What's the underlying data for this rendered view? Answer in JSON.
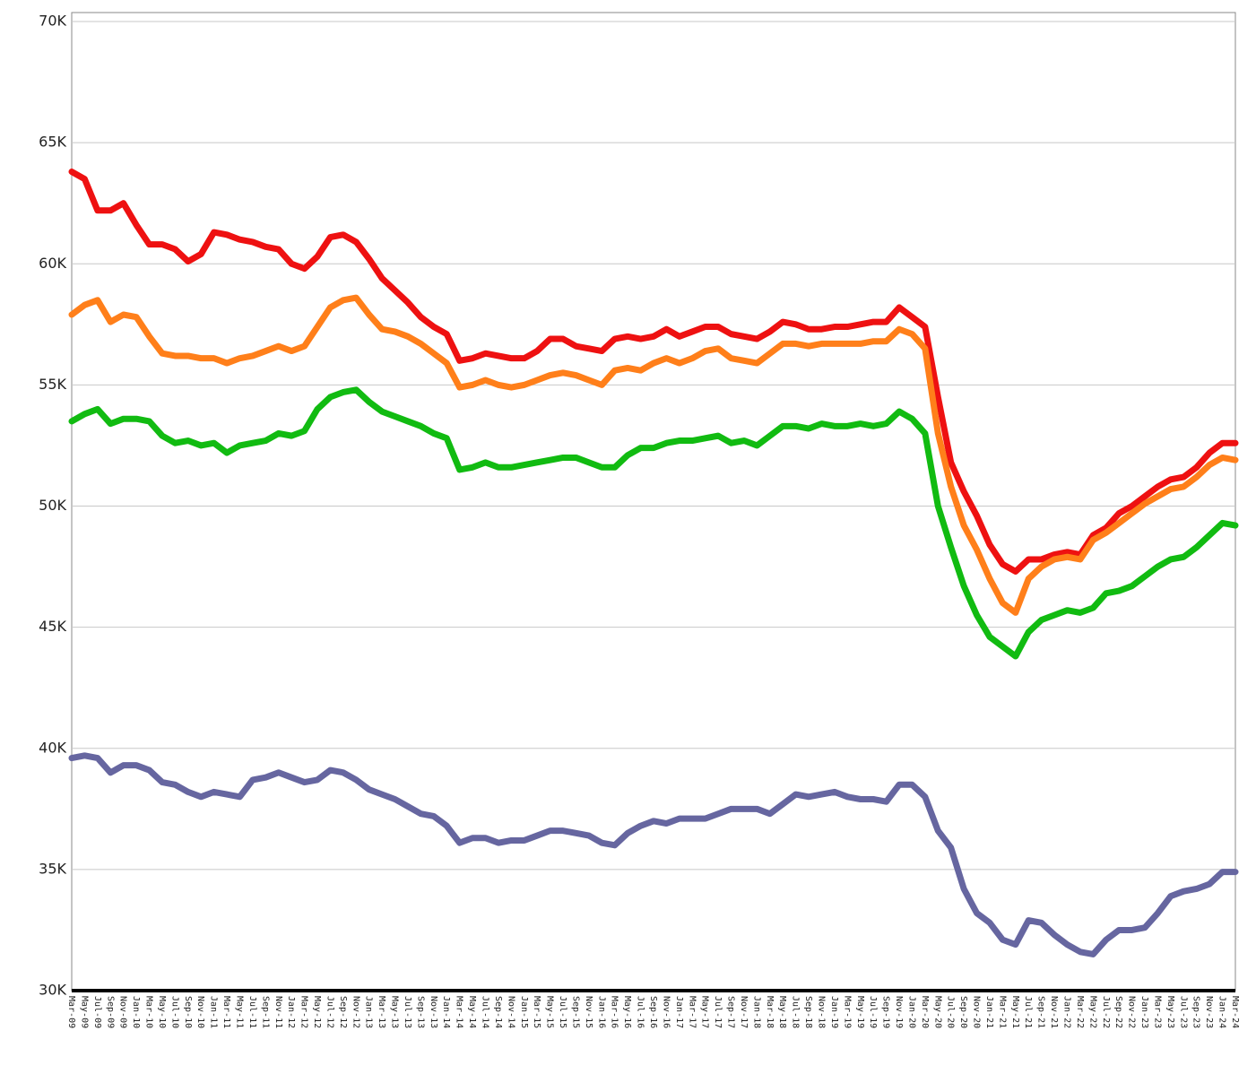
{
  "chart_data": {
    "type": "line",
    "categories": [
      "Mar-09",
      "May-09",
      "Jul-09",
      "Sep-09",
      "Nov-09",
      "Jan-10",
      "Mar-10",
      "May-10",
      "Jul-10",
      "Sep-10",
      "Nov-10",
      "Jan-11",
      "Mar-11",
      "May-11",
      "Jul-11",
      "Sep-11",
      "Nov-11",
      "Jan-12",
      "Mar-12",
      "May-12",
      "Jul-12",
      "Sep-12",
      "Nov-12",
      "Jan-13",
      "Mar-13",
      "May-13",
      "Jul-13",
      "Sep-13",
      "Nov-13",
      "Jan-14",
      "Mar-14",
      "May-14",
      "Jul-14",
      "Sep-14",
      "Nov-14",
      "Jan-15",
      "Mar-15",
      "May-15",
      "Jul-15",
      "Sep-15",
      "Nov-15",
      "Jan-16",
      "Mar-16",
      "May-16",
      "Jul-16",
      "Sep-16",
      "Nov-16",
      "Jan-17",
      "Mar-17",
      "May-17",
      "Jul-17",
      "Sep-17",
      "Nov-17",
      "Jan-18",
      "Mar-18",
      "May-18",
      "Jul-18",
      "Sep-18",
      "Nov-18",
      "Jan-19",
      "Mar-19",
      "May-19",
      "Jul-19",
      "Sep-19",
      "Nov-19",
      "Jan-20",
      "Mar-20",
      "May-20",
      "Jul-20",
      "Sep-20",
      "Nov-20",
      "Jan-21",
      "Mar-21",
      "May-21",
      "Jul-21",
      "Sep-21",
      "Nov-21",
      "Jan-22",
      "Mar-22",
      "May-22",
      "Jul-22",
      "Sep-22",
      "Nov-22",
      "Jan-23",
      "Mar-23",
      "May-23",
      "Jul-23",
      "Sep-23",
      "Nov-23",
      "Jan-24",
      "Mar-24"
    ],
    "series": [
      {
        "color": "#ee1111",
        "values": [
          63800,
          63500,
          62200,
          62200,
          62500,
          61600,
          60800,
          60800,
          60600,
          60100,
          60400,
          61300,
          61200,
          61000,
          60900,
          60700,
          60600,
          60000,
          59800,
          60300,
          61100,
          61200,
          60900,
          60200,
          59400,
          58900,
          58400,
          57800,
          57400,
          57100,
          56000,
          56100,
          56300,
          56200,
          56100,
          56100,
          56400,
          56900,
          56900,
          56600,
          56500,
          56400,
          56900,
          57000,
          56900,
          57000,
          57300,
          57000,
          57200,
          57400,
          57400,
          57100,
          57000,
          56900,
          57200,
          57600,
          57500,
          57300,
          57300,
          57400,
          57400,
          57500,
          57600,
          57600,
          58200,
          57800,
          57400,
          54500,
          51800,
          50600,
          49600,
          48400,
          47600,
          47300,
          47800,
          47800,
          48000,
          48100,
          48000,
          48800,
          49100,
          49700,
          50000,
          50400,
          50800,
          51100,
          51200,
          51600,
          52200,
          52600,
          52600
        ]
      },
      {
        "color": "#ff7f1a",
        "values": [
          57900,
          58300,
          58500,
          57600,
          57900,
          57800,
          57000,
          56300,
          56200,
          56200,
          56100,
          56100,
          55900,
          56100,
          56200,
          56400,
          56600,
          56400,
          56600,
          57400,
          58200,
          58500,
          58600,
          57900,
          57300,
          57200,
          57000,
          56700,
          56300,
          55900,
          54900,
          55000,
          55200,
          55000,
          54900,
          55000,
          55200,
          55400,
          55500,
          55400,
          55200,
          55000,
          55600,
          55700,
          55600,
          55900,
          56100,
          55900,
          56100,
          56400,
          56500,
          56100,
          56000,
          55900,
          56300,
          56700,
          56700,
          56600,
          56700,
          56700,
          56700,
          56700,
          56800,
          56800,
          57300,
          57100,
          56500,
          53000,
          50800,
          49200,
          48200,
          47000,
          46000,
          45600,
          47000,
          47500,
          47800,
          47900,
          47800,
          48600,
          48900,
          49300,
          49700,
          50100,
          50400,
          50700,
          50800,
          51200,
          51700,
          52000,
          51900
        ]
      },
      {
        "color": "#11bb11",
        "values": [
          53500,
          53800,
          54000,
          53400,
          53600,
          53600,
          53500,
          52900,
          52600,
          52700,
          52500,
          52600,
          52200,
          52500,
          52600,
          52700,
          53000,
          52900,
          53100,
          54000,
          54500,
          54700,
          54800,
          54300,
          53900,
          53700,
          53500,
          53300,
          53000,
          52800,
          51500,
          51600,
          51800,
          51600,
          51600,
          51700,
          51800,
          51900,
          52000,
          52000,
          51800,
          51600,
          51600,
          52100,
          52400,
          52400,
          52600,
          52700,
          52700,
          52800,
          52900,
          52600,
          52700,
          52500,
          52900,
          53300,
          53300,
          53200,
          53400,
          53300,
          53300,
          53400,
          53300,
          53400,
          53900,
          53600,
          53000,
          50000,
          48300,
          46700,
          45500,
          44600,
          44200,
          43800,
          44800,
          45300,
          45500,
          45700,
          45600,
          45800,
          46400,
          46500,
          46700,
          47100,
          47500,
          47800,
          47900,
          48300,
          48800,
          49300,
          49200
        ]
      },
      {
        "color": "#6666a0",
        "values": [
          39600,
          39700,
          39600,
          39000,
          39300,
          39300,
          39100,
          38600,
          38500,
          38200,
          38000,
          38200,
          38100,
          38000,
          38700,
          38800,
          39000,
          38800,
          38600,
          38700,
          39100,
          39000,
          38700,
          38300,
          38100,
          37900,
          37600,
          37300,
          37200,
          36800,
          36100,
          36300,
          36300,
          36100,
          36200,
          36200,
          36400,
          36600,
          36600,
          36500,
          36400,
          36100,
          36000,
          36500,
          36800,
          37000,
          36900,
          37100,
          37100,
          37100,
          37300,
          37500,
          37500,
          37500,
          37300,
          37700,
          38100,
          38000,
          38100,
          38200,
          38000,
          37900,
          37900,
          37800,
          38500,
          38500,
          38000,
          36600,
          35900,
          34200,
          33200,
          32800,
          32100,
          31900,
          32900,
          32800,
          32300,
          31900,
          31600,
          31500,
          32100,
          32500,
          32500,
          32600,
          33200,
          33900,
          34100,
          34200,
          34400,
          34900,
          34900
        ]
      }
    ],
    "ylim": [
      30000,
      70000
    ],
    "yticks": [
      {
        "value": 30000,
        "label": "30K"
      },
      {
        "value": 35000,
        "label": "35K"
      },
      {
        "value": 40000,
        "label": "40K"
      },
      {
        "value": 45000,
        "label": "45K"
      },
      {
        "value": 50000,
        "label": "50K"
      },
      {
        "value": 55000,
        "label": "55K"
      },
      {
        "value": 60000,
        "label": "60K"
      },
      {
        "value": 65000,
        "label": "65K"
      },
      {
        "value": 70000,
        "label": "70K"
      }
    ],
    "grid": true
  }
}
